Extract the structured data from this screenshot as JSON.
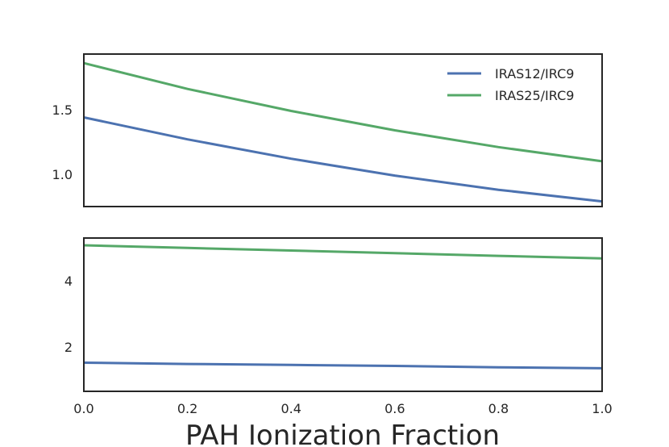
{
  "chart_data": {
    "type": "line",
    "xlabel": "PAH Ionization Fraction",
    "xlim": [
      0.0,
      1.0
    ],
    "xticks": [
      "0.0",
      "0.2",
      "0.4",
      "0.6",
      "0.8",
      "1.0"
    ],
    "shared_x": true,
    "legend": {
      "placement": "top-right",
      "entries": [
        "IRAS12/IRC9",
        "IRAS25/IRC9"
      ]
    },
    "colors": {
      "IRAS12/IRC9": "#4c72b0",
      "IRAS25/IRC9": "#55a868"
    },
    "panels": [
      {
        "ylim": [
          0.75,
          1.93
        ],
        "yticks": [
          "1.0",
          "1.5"
        ],
        "series": [
          {
            "name": "IRAS12/IRC9",
            "x": [
              0.0,
              0.2,
              0.4,
              0.6,
              0.8,
              1.0
            ],
            "values": [
              1.44,
              1.27,
              1.12,
              0.99,
              0.88,
              0.79
            ]
          },
          {
            "name": "IRAS25/IRC9",
            "x": [
              0.0,
              0.2,
              0.4,
              0.6,
              0.8,
              1.0
            ],
            "values": [
              1.86,
              1.66,
              1.49,
              1.34,
              1.21,
              1.1
            ]
          }
        ]
      },
      {
        "ylim": [
          0.65,
          5.3
        ],
        "yticks": [
          "2",
          "4"
        ],
        "series": [
          {
            "name": "IRAS12/IRC9",
            "x": [
              0.0,
              0.2,
              0.4,
              0.6,
              0.8,
              1.0
            ],
            "values": [
              1.52,
              1.48,
              1.45,
              1.42,
              1.38,
              1.35
            ]
          },
          {
            "name": "IRAS25/IRC9",
            "x": [
              0.0,
              0.2,
              0.4,
              0.6,
              0.8,
              1.0
            ],
            "values": [
              5.08,
              5.0,
              4.92,
              4.84,
              4.76,
              4.68
            ]
          }
        ]
      }
    ]
  }
}
